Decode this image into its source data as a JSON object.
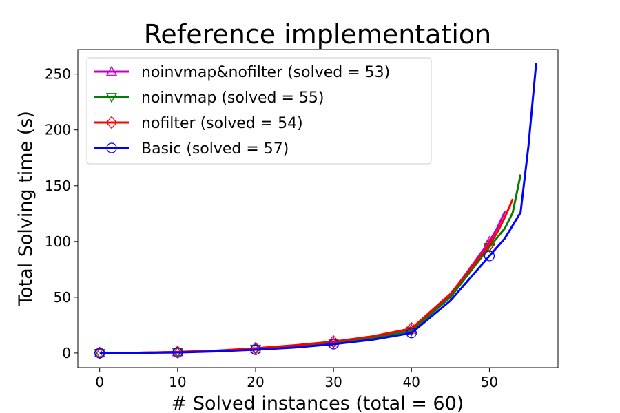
{
  "chart_data": {
    "type": "line",
    "title": "Reference implementation",
    "xlabel": "# Solved instances (total = 60)",
    "ylabel": "Total Solving time (s)",
    "xlim": [
      -2.8,
      58.8
    ],
    "ylim": [
      -13,
      272
    ],
    "xticks": [
      0,
      10,
      20,
      30,
      40,
      50
    ],
    "yticks": [
      0,
      50,
      100,
      150,
      200,
      250
    ],
    "grid": false,
    "legend_position": "top-left",
    "series": [
      {
        "name": "noinvmap&nofilter (solved = 53)",
        "color": "#bf00bf",
        "marker": "triangle-up",
        "x": [
          0,
          5,
          10,
          15,
          20,
          25,
          30,
          35,
          40,
          45,
          50,
          51,
          52
        ],
        "y": [
          0,
          0.3,
          0.9,
          2,
          4,
          6.5,
          9.5,
          14,
          21,
          52,
          100,
          112,
          127
        ],
        "marker_x": [
          0,
          10,
          20,
          30,
          40,
          50
        ],
        "marker_y": [
          0,
          0.9,
          4,
          9.5,
          21,
          100
        ]
      },
      {
        "name": "noinvmap (solved = 55)",
        "color": "#008000",
        "marker": "triangle-down",
        "x": [
          0,
          5,
          10,
          15,
          20,
          25,
          30,
          35,
          40,
          45,
          50,
          52,
          53,
          54
        ],
        "y": [
          0,
          0.3,
          0.8,
          1.9,
          3.8,
          6.2,
          9.2,
          13.5,
          20,
          50,
          95,
          112,
          126,
          160
        ],
        "marker_x": [
          0,
          10,
          20,
          30,
          40,
          50
        ],
        "marker_y": [
          0,
          0.8,
          3.8,
          9.2,
          20,
          95
        ]
      },
      {
        "name": "nofilter (solved = 54)",
        "color": "#ff0000",
        "marker": "diamond",
        "x": [
          0,
          5,
          10,
          15,
          20,
          25,
          30,
          35,
          40,
          45,
          50,
          51,
          52,
          53
        ],
        "y": [
          0,
          0.3,
          1,
          2.2,
          4.3,
          7,
          10.3,
          15,
          22,
          53,
          97,
          108,
          122,
          138
        ],
        "marker_x": [
          0,
          10,
          20,
          30,
          40,
          50
        ],
        "marker_y": [
          0,
          1,
          4.3,
          10.3,
          22,
          97
        ]
      },
      {
        "name": "Basic (solved = 57)",
        "color": "#0000ff",
        "marker": "circle",
        "x": [
          0,
          5,
          10,
          15,
          20,
          25,
          30,
          35,
          40,
          45,
          50,
          52,
          54,
          55,
          56
        ],
        "y": [
          0,
          0.2,
          0.5,
          1.5,
          3,
          5,
          8,
          12,
          18,
          47,
          87,
          103,
          126,
          185,
          260
        ],
        "marker_x": [
          0,
          10,
          20,
          30,
          40,
          50
        ],
        "marker_y": [
          0,
          0.5,
          3,
          8,
          18,
          87
        ]
      }
    ]
  }
}
